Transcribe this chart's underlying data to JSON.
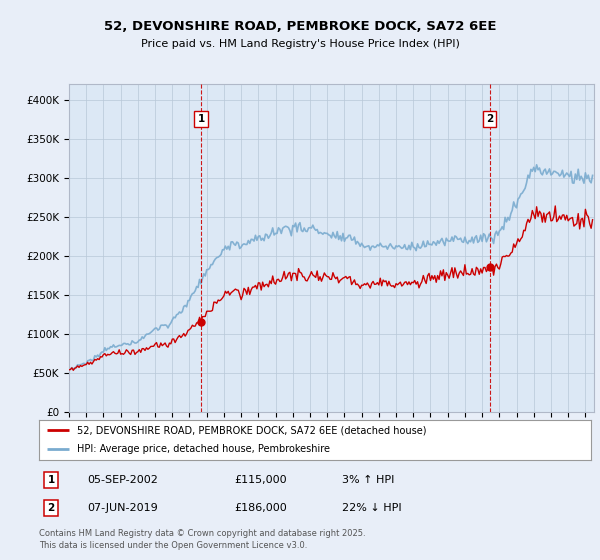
{
  "title_line1": "52, DEVONSHIRE ROAD, PEMBROKE DOCK, SA72 6EE",
  "title_line2": "Price paid vs. HM Land Registry's House Price Index (HPI)",
  "ylabel_ticks": [
    "£0",
    "£50K",
    "£100K",
    "£150K",
    "£200K",
    "£250K",
    "£300K",
    "£350K",
    "£400K"
  ],
  "ytick_vals": [
    0,
    50000,
    100000,
    150000,
    200000,
    250000,
    300000,
    350000,
    400000
  ],
  "ylim": [
    0,
    420000
  ],
  "xlim_start": 1995.0,
  "xlim_end": 2025.5,
  "xtick_years": [
    1995,
    1996,
    1997,
    1998,
    1999,
    2000,
    2001,
    2002,
    2003,
    2004,
    2005,
    2006,
    2007,
    2008,
    2009,
    2010,
    2011,
    2012,
    2013,
    2014,
    2015,
    2016,
    2017,
    2018,
    2019,
    2020,
    2021,
    2022,
    2023,
    2024,
    2025
  ],
  "sale1_x": 2002.68,
  "sale1_y": 115000,
  "sale2_x": 2019.44,
  "sale2_y": 186000,
  "line_color_sale": "#cc0000",
  "line_color_hpi": "#7aabcf",
  "vline_color": "#cc0000",
  "background_color": "#e8eef8",
  "plot_bg_color": "#dce8f5",
  "grid_color": "#b8c8d8",
  "legend_label_sale": "52, DEVONSHIRE ROAD, PEMBROKE DOCK, SA72 6EE (detached house)",
  "legend_label_hpi": "HPI: Average price, detached house, Pembrokeshire",
  "sale1_label": "1",
  "sale2_label": "2",
  "sale1_date": "05-SEP-2002",
  "sale1_price": "£115,000",
  "sale1_hpi": "3% ↑ HPI",
  "sale2_date": "07-JUN-2019",
  "sale2_price": "£186,000",
  "sale2_hpi": "22% ↓ HPI",
  "footer": "Contains HM Land Registry data © Crown copyright and database right 2025.\nThis data is licensed under the Open Government Licence v3.0."
}
